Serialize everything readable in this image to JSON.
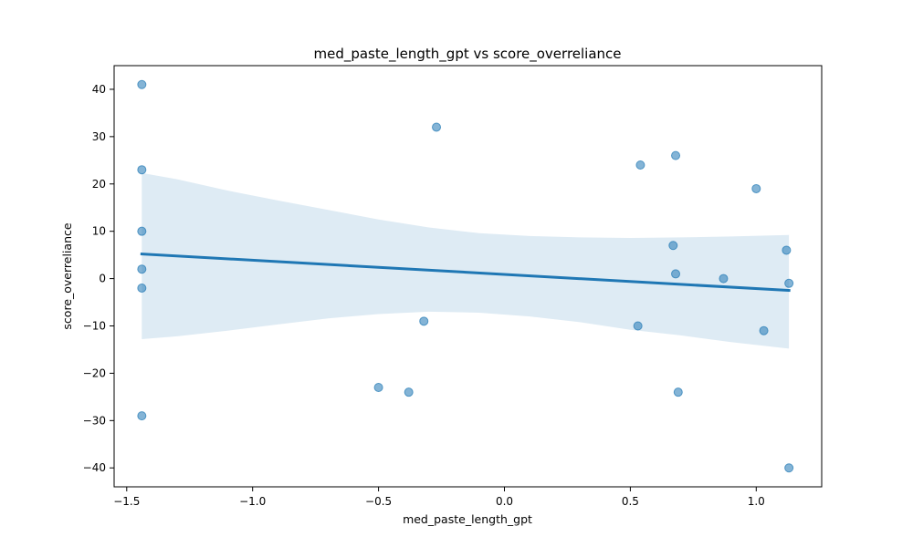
{
  "chart_data": {
    "type": "scatter",
    "title": "med_paste_length_gpt vs score_overreliance",
    "xlabel": "med_paste_length_gpt",
    "ylabel": "score_overreliance",
    "xlim": [
      -1.55,
      1.26
    ],
    "ylim": [
      -44,
      45
    ],
    "xticks": [
      -1.5,
      -1.0,
      -0.5,
      0.0,
      0.5,
      1.0
    ],
    "xtick_labels": [
      "−1.5",
      "−1.0",
      "−0.5",
      "0.0",
      "0.5",
      "1.0"
    ],
    "yticks": [
      -40,
      -30,
      -20,
      -10,
      0,
      10,
      20,
      30,
      40
    ],
    "ytick_labels": [
      "−40",
      "−30",
      "−20",
      "−10",
      "0",
      "10",
      "20",
      "30",
      "40"
    ],
    "grid": false,
    "points": [
      {
        "x": -1.44,
        "y": 41
      },
      {
        "x": -1.44,
        "y": 23
      },
      {
        "x": -1.44,
        "y": 10
      },
      {
        "x": -1.44,
        "y": 2
      },
      {
        "x": -1.44,
        "y": -2
      },
      {
        "x": -1.44,
        "y": -29
      },
      {
        "x": -0.5,
        "y": -23
      },
      {
        "x": -0.38,
        "y": -24
      },
      {
        "x": -0.32,
        "y": -9
      },
      {
        "x": -0.27,
        "y": 32
      },
      {
        "x": 0.53,
        "y": -10
      },
      {
        "x": 0.54,
        "y": 24
      },
      {
        "x": 0.67,
        "y": 7
      },
      {
        "x": 0.68,
        "y": 26
      },
      {
        "x": 0.68,
        "y": 1
      },
      {
        "x": 0.69,
        "y": -24
      },
      {
        "x": 0.87,
        "y": 0
      },
      {
        "x": 1.0,
        "y": 19
      },
      {
        "x": 1.03,
        "y": -11
      },
      {
        "x": 1.12,
        "y": 6
      },
      {
        "x": 1.13,
        "y": -1
      },
      {
        "x": 1.13,
        "y": -40
      }
    ],
    "regression_line": {
      "x": [
        -1.44,
        1.13
      ],
      "y": [
        5.2,
        -2.5
      ]
    },
    "confidence_band": {
      "x": [
        -1.44,
        -1.3,
        -1.1,
        -0.9,
        -0.7,
        -0.5,
        -0.3,
        -0.1,
        0.1,
        0.3,
        0.5,
        0.7,
        0.9,
        1.13
      ],
      "upper": [
        22.3,
        21.0,
        18.6,
        16.5,
        14.5,
        12.5,
        10.8,
        9.6,
        9.0,
        8.7,
        8.6,
        8.7,
        8.9,
        9.2
      ],
      "lower": [
        -12.8,
        -12.2,
        -11.0,
        -9.7,
        -8.4,
        -7.5,
        -7.0,
        -7.2,
        -8.0,
        -9.2,
        -10.8,
        -12.0,
        -13.4,
        -14.8
      ]
    },
    "colors": {
      "points": "#1f77b4",
      "line": "#1f77b4",
      "band": "#1f77b4"
    }
  }
}
